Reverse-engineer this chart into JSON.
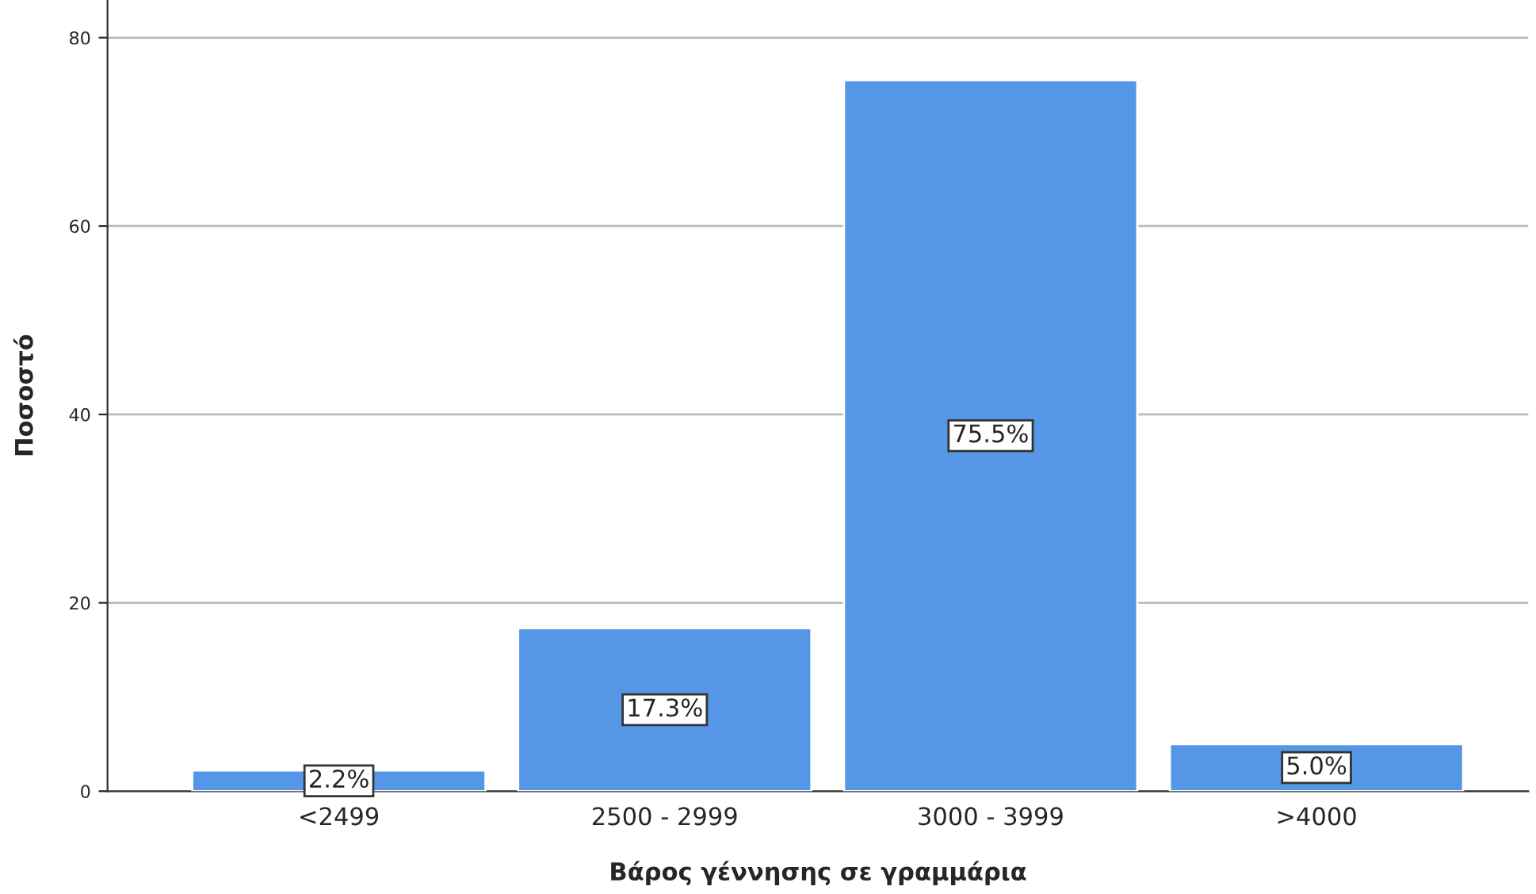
{
  "chart_data": {
    "type": "bar",
    "xlabel": "Βάρος γέννησης σε γραμμάρια",
    "ylabel": "Ποσοστό",
    "categories": [
      "<2499",
      "2500 - 2999",
      "3000 - 3999",
      ">4000"
    ],
    "values": [
      2.2,
      17.3,
      75.5,
      5.0
    ],
    "value_labels": [
      "2.2%",
      "17.3%",
      "75.5%",
      "5.0%"
    ],
    "color": "#5596e6",
    "ylim": [
      0,
      84
    ],
    "yticks": [
      0,
      20,
      40,
      60,
      80
    ],
    "grid": "y",
    "legend": false
  }
}
